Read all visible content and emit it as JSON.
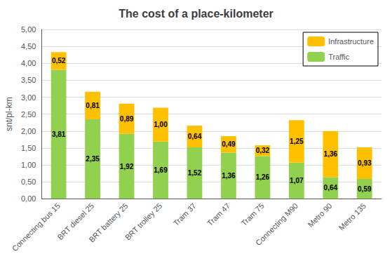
{
  "chart_data": {
    "type": "bar",
    "title": "The cost of a place-kilometer",
    "ylabel": "snt/pl-km",
    "categories": [
      "Connecting bus 15",
      "BRT diesel 25",
      "BRT battery 25",
      "BRT trolley 25",
      "Tram 37",
      "Tram 47",
      "Tram 75",
      "Connecting M90",
      "Metro 90",
      "Metro 135"
    ],
    "series": [
      {
        "name": "Traffic",
        "color": "#92D050",
        "values": [
          3.81,
          2.35,
          1.92,
          1.69,
          1.52,
          1.36,
          1.26,
          1.07,
          0.64,
          0.59
        ],
        "value_labels": [
          "3,81",
          "2,35",
          "1,92",
          "1,69",
          "1,52",
          "1,36",
          "1,26",
          "1,07",
          "0,64",
          "0,59"
        ]
      },
      {
        "name": "Infrastructure",
        "color": "#FFC000",
        "values": [
          0.52,
          0.81,
          0.89,
          1.0,
          0.64,
          0.49,
          0.32,
          1.25,
          1.36,
          0.93
        ],
        "value_labels": [
          "0,52",
          "0,81",
          "0,89",
          "1,00",
          "0,64",
          "0,49",
          "0,32",
          "1,25",
          "1,36",
          "0,93"
        ]
      }
    ],
    "stacked": true,
    "data_labels": true,
    "ylim": [
      0,
      5.0
    ],
    "yticks": [
      {
        "value": 0.0,
        "label": "0,00"
      },
      {
        "value": 0.5,
        "label": "0,50"
      },
      {
        "value": 1.0,
        "label": "1,00"
      },
      {
        "value": 1.5,
        "label": "1,50"
      },
      {
        "value": 2.0,
        "label": "2,00"
      },
      {
        "value": 2.5,
        "label": "2,50"
      },
      {
        "value": 3.0,
        "label": "3,00"
      },
      {
        "value": 3.5,
        "label": "3,50"
      },
      {
        "value": 4.0,
        "label": "4,00"
      },
      {
        "value": 4.5,
        "label": "4,50"
      },
      {
        "value": 5.0,
        "label": "5,00"
      }
    ],
    "grid": true,
    "legend": "upper right"
  }
}
